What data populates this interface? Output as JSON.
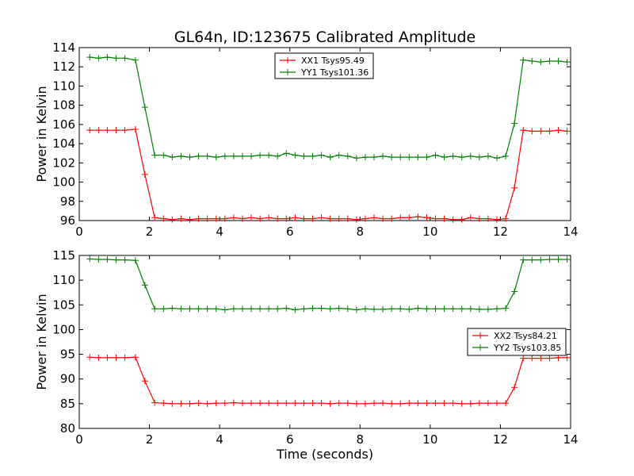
{
  "figure": {
    "title": "GL64n, ID:123675 Calibrated Amplitude",
    "xlabel": "Time (seconds)"
  },
  "colors": {
    "series_red": "#ff0000",
    "series_green": "#008000",
    "axes": "#000000",
    "background": "#ffffff"
  },
  "chart_data": [
    {
      "type": "line",
      "title": "GL64n, ID:123675 Calibrated Amplitude",
      "xlabel": "",
      "ylabel": "Power in Kelvin",
      "xlim": [
        0,
        14
      ],
      "ylim": [
        96,
        114
      ],
      "xticks": [
        "0",
        "2",
        "4",
        "6",
        "8",
        "10",
        "12",
        "14"
      ],
      "yticks": [
        "96",
        "98",
        "100",
        "102",
        "104",
        "106",
        "108",
        "110",
        "112",
        "114"
      ],
      "grid": false,
      "legend_position": "upper-center",
      "x": [
        0.3,
        0.55,
        0.8,
        1.05,
        1.3,
        1.6,
        1.87,
        2.15,
        2.4,
        2.65,
        2.9,
        3.15,
        3.4,
        3.65,
        3.9,
        4.15,
        4.4,
        4.65,
        4.9,
        5.15,
        5.4,
        5.65,
        5.9,
        6.15,
        6.4,
        6.65,
        6.9,
        7.15,
        7.4,
        7.65,
        7.9,
        8.15,
        8.4,
        8.65,
        8.9,
        9.15,
        9.4,
        9.65,
        9.9,
        10.15,
        10.4,
        10.65,
        10.9,
        11.15,
        11.4,
        11.65,
        11.9,
        12.15,
        12.4,
        12.65,
        12.9,
        13.15,
        13.4,
        13.65,
        13.9
      ],
      "series": [
        {
          "name": "XX1 Tsys95.49",
          "color": "#ff0000",
          "values": [
            105.4,
            105.4,
            105.4,
            105.4,
            105.4,
            105.5,
            100.8,
            96.3,
            96.2,
            96.1,
            96.2,
            96.1,
            96.2,
            96.2,
            96.2,
            96.2,
            96.3,
            96.2,
            96.3,
            96.2,
            96.3,
            96.2,
            96.2,
            96.3,
            96.2,
            96.2,
            96.3,
            96.2,
            96.2,
            96.2,
            96.1,
            96.2,
            96.3,
            96.2,
            96.2,
            96.3,
            96.3,
            96.4,
            96.3,
            96.2,
            96.2,
            96.1,
            96.1,
            96.3,
            96.2,
            96.2,
            96.1,
            96.2,
            99.4,
            105.4,
            105.3,
            105.3,
            105.3,
            105.4,
            105.3
          ]
        },
        {
          "name": "YY1 Tsys101.36",
          "color": "#008000",
          "values": [
            113.0,
            112.9,
            113.0,
            112.9,
            112.9,
            112.7,
            107.8,
            102.8,
            102.8,
            102.6,
            102.7,
            102.6,
            102.7,
            102.7,
            102.6,
            102.7,
            102.7,
            102.7,
            102.7,
            102.8,
            102.8,
            102.7,
            103.0,
            102.8,
            102.7,
            102.7,
            102.8,
            102.6,
            102.8,
            102.7,
            102.5,
            102.6,
            102.6,
            102.7,
            102.6,
            102.6,
            102.6,
            102.6,
            102.6,
            102.8,
            102.6,
            102.7,
            102.6,
            102.7,
            102.6,
            102.7,
            102.5,
            102.7,
            106.1,
            112.7,
            112.6,
            112.5,
            112.6,
            112.6,
            112.5
          ]
        }
      ]
    },
    {
      "type": "line",
      "title": "",
      "xlabel": "Time (seconds)",
      "ylabel": "Power in Kelvin",
      "xlim": [
        0,
        14
      ],
      "ylim": [
        80,
        115
      ],
      "xticks": [
        "0",
        "2",
        "4",
        "6",
        "8",
        "10",
        "12",
        "14"
      ],
      "yticks": [
        "80",
        "85",
        "90",
        "95",
        "100",
        "105",
        "110",
        "115"
      ],
      "grid": false,
      "legend_position": "center-right",
      "x": [
        0.3,
        0.55,
        0.8,
        1.05,
        1.3,
        1.6,
        1.87,
        2.15,
        2.4,
        2.65,
        2.9,
        3.15,
        3.4,
        3.65,
        3.9,
        4.15,
        4.4,
        4.65,
        4.9,
        5.15,
        5.4,
        5.65,
        5.9,
        6.15,
        6.4,
        6.65,
        6.9,
        7.15,
        7.4,
        7.65,
        7.9,
        8.15,
        8.4,
        8.65,
        8.9,
        9.15,
        9.4,
        9.65,
        9.9,
        10.15,
        10.4,
        10.65,
        10.9,
        11.15,
        11.4,
        11.65,
        11.9,
        12.15,
        12.4,
        12.65,
        12.9,
        13.15,
        13.4,
        13.65,
        13.9
      ],
      "series": [
        {
          "name": "XX2 Tsys84.21",
          "color": "#ff0000",
          "values": [
            94.4,
            94.3,
            94.3,
            94.3,
            94.3,
            94.4,
            89.6,
            85.2,
            85.1,
            85.0,
            85.0,
            85.0,
            85.1,
            85.0,
            85.1,
            85.1,
            85.2,
            85.1,
            85.1,
            85.1,
            85.1,
            85.1,
            85.1,
            85.1,
            85.1,
            85.1,
            85.1,
            85.0,
            85.1,
            85.1,
            85.0,
            85.0,
            85.1,
            85.1,
            85.0,
            85.0,
            85.1,
            85.1,
            85.1,
            85.1,
            85.1,
            85.1,
            85.0,
            85.0,
            85.1,
            85.1,
            85.1,
            85.1,
            88.3,
            94.2,
            94.2,
            94.2,
            94.2,
            94.3,
            94.3
          ]
        },
        {
          "name": "YY2 Tsys103.85",
          "color": "#008000",
          "values": [
            114.3,
            114.2,
            114.2,
            114.1,
            114.1,
            114.0,
            109.0,
            104.2,
            104.2,
            104.3,
            104.2,
            104.2,
            104.2,
            104.2,
            104.2,
            104.0,
            104.2,
            104.2,
            104.2,
            104.2,
            104.2,
            104.2,
            104.3,
            104.0,
            104.2,
            104.3,
            104.3,
            104.2,
            104.3,
            104.2,
            104.0,
            104.2,
            104.1,
            104.1,
            104.2,
            104.2,
            104.1,
            104.3,
            104.2,
            104.2,
            104.2,
            104.2,
            104.2,
            104.2,
            104.1,
            104.1,
            104.2,
            104.3,
            107.7,
            114.1,
            114.1,
            114.1,
            114.2,
            114.2,
            114.2
          ]
        }
      ]
    }
  ]
}
